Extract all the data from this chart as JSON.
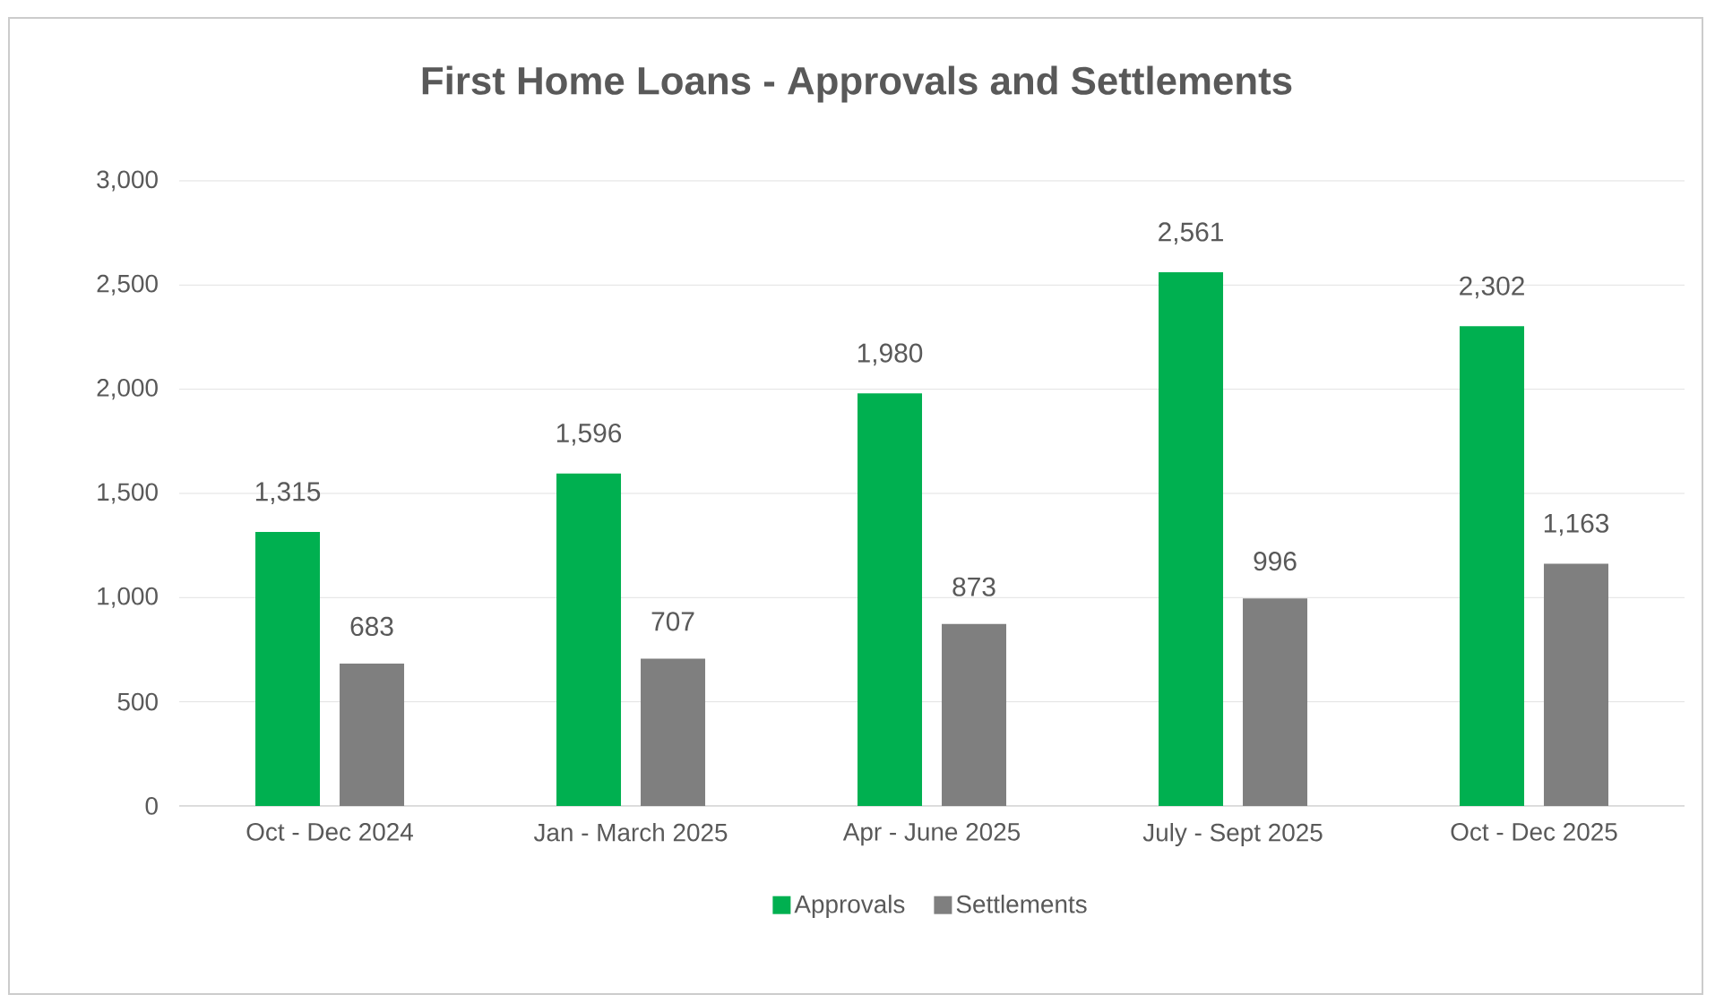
{
  "chart_data": {
    "type": "bar",
    "title": "First Home Loans - Approvals and Settlements",
    "categories": [
      "Oct - Dec 2024",
      "Jan - March 2025",
      "Apr - June 2025",
      "July - Sept 2025",
      "Oct - Dec 2025"
    ],
    "series": [
      {
        "name": "Approvals",
        "color": "#00b050",
        "values": [
          1315,
          1596,
          1980,
          2561,
          2302
        ],
        "value_labels": [
          "1,315",
          "1,596",
          "1,980",
          "2,561",
          "2,302"
        ]
      },
      {
        "name": "Settlements",
        "color": "#7f7f7f",
        "values": [
          683,
          707,
          873,
          996,
          1163
        ],
        "value_labels": [
          "683",
          "707",
          "873",
          "996",
          "1,163"
        ]
      }
    ],
    "ylim": [
      0,
      3000
    ],
    "yticks": [
      {
        "value": 0,
        "label": "0"
      },
      {
        "value": 500,
        "label": "500"
      },
      {
        "value": 1000,
        "label": "1,000"
      },
      {
        "value": 1500,
        "label": "1,500"
      },
      {
        "value": 2000,
        "label": "2,000"
      },
      {
        "value": 2500,
        "label": "2,500"
      },
      {
        "value": 3000,
        "label": "3,000"
      }
    ],
    "grid": "y",
    "legend": "bottom"
  }
}
